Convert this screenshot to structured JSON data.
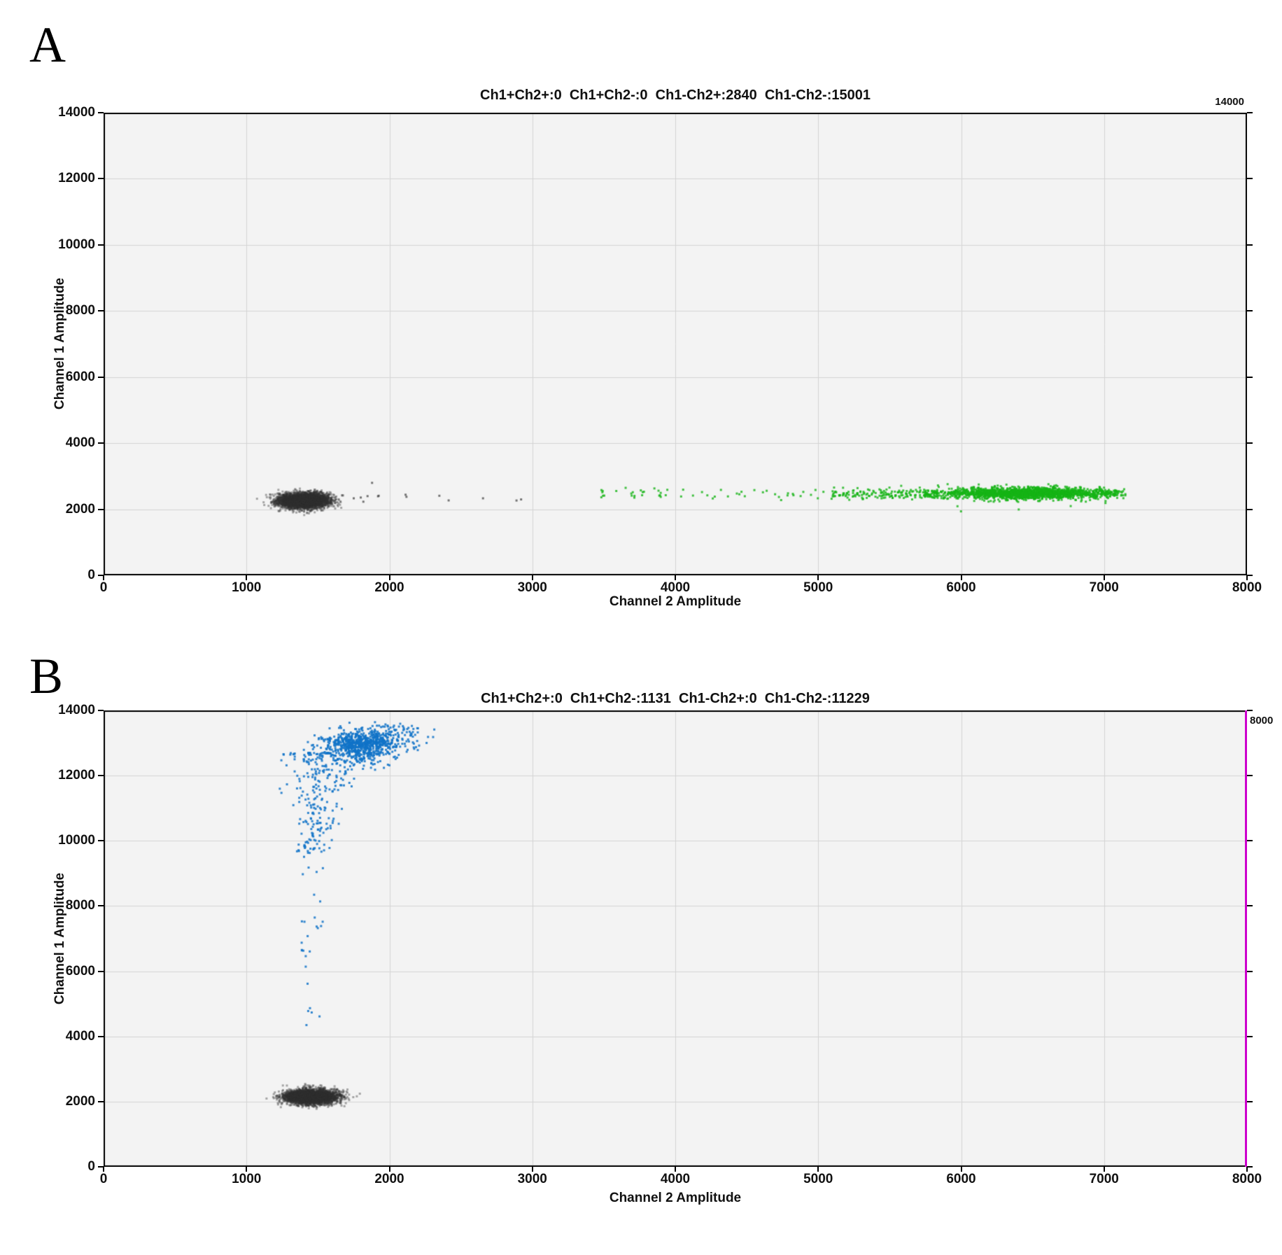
{
  "figure": {
    "background": "#ffffff",
    "description_texts": {
      "panel_a_letter": "A",
      "panel_b_letter": "B"
    }
  },
  "chart_data": {
    "type": "scatter",
    "subtype": "ddPCR 2D droplet amplitude plots",
    "grid": true,
    "legend": "none",
    "panels": [
      {
        "letter": "A",
        "title": "Ch1+Ch2+:0  Ch1+Ch2-:0  Ch1-Ch2+:2840  Ch1-Ch2-:15001",
        "corner_label": "14000",
        "xlabel": "Channel 2 Amplitude",
        "ylabel": "Channel 1 Amplitude",
        "xlim": [
          0,
          8000
        ],
        "ylim": [
          0,
          14000
        ],
        "xtick_step": 1000,
        "ytick_step": 2000,
        "plot_bg": "#f3f3f3",
        "grid_color": "#d4d4d4",
        "border_color": "#000000",
        "right_edge_line_color": null,
        "populations": [
          {
            "label": "Ch1+Ch2+",
            "count": 0
          },
          {
            "label": "Ch1+Ch2-",
            "count": 0
          },
          {
            "label": "Ch1-Ch2+",
            "count": 2840
          },
          {
            "label": "Ch1-Ch2-",
            "count": 15001
          }
        ],
        "clusters": [
          {
            "name": "double-negative-droplets",
            "type": "gauss",
            "n": 3600,
            "cx": 1400,
            "cy": 2260,
            "sx": 88,
            "sy": 112,
            "color": "#303030",
            "alpha": 0.4,
            "size": 3
          },
          {
            "name": "stray-negative-droplets",
            "type": "box",
            "n": 13,
            "x0": 1640,
            "x1": 2950,
            "y0": 2140,
            "y1": 2450,
            "color": "#4a4a4a",
            "alpha": 0.75,
            "size": 3
          },
          {
            "name": "stray-negative-high",
            "type": "box",
            "n": 1,
            "x0": 1860,
            "x1": 1900,
            "y0": 2760,
            "y1": 2800,
            "color": "#4a4a4a",
            "alpha": 0.75,
            "size": 3
          },
          {
            "name": "ch2-positive-rain-sparse",
            "type": "rain",
            "n": 55,
            "x0": 3480,
            "x1": 5100,
            "cy": 2480,
            "sy": 80,
            "color": "#15b415",
            "alpha": 0.8,
            "size": 3
          },
          {
            "name": "ch2-positive-rain-mid",
            "type": "rain",
            "n": 170,
            "x0": 5100,
            "x1": 5850,
            "cy": 2470,
            "sy": 82,
            "color": "#15b415",
            "alpha": 0.8,
            "size": 3
          },
          {
            "name": "ch2-positive-cluster",
            "type": "gauss",
            "n": 1700,
            "cx": 6470,
            "cy": 2480,
            "sx": 310,
            "sy": 88,
            "clipx": [
              5720,
              7150
            ],
            "color": "#15b415",
            "alpha": 0.8,
            "size": 3
          },
          {
            "name": "ch2-positive-low-outliers",
            "type": "box",
            "n": 4,
            "x0": 5900,
            "x1": 6800,
            "y0": 1930,
            "y1": 2120,
            "color": "#15b415",
            "alpha": 0.8,
            "size": 3
          }
        ]
      },
      {
        "letter": "B",
        "title": "Ch1+Ch2+:0  Ch1+Ch2-:1131  Ch1-Ch2+:0  Ch1-Ch2-:11229",
        "corner_label": "8000",
        "xlabel": "Channel 2 Amplitude",
        "ylabel": "Channel 1 Amplitude",
        "xlim": [
          0,
          8000
        ],
        "ylim": [
          0,
          14000
        ],
        "xtick_step": 1000,
        "ytick_step": 2000,
        "plot_bg": "#f3f3f3",
        "grid_color": "#d4d4d4",
        "border_color": "#000000",
        "right_edge_line_color": "#cc00cc",
        "populations": [
          {
            "label": "Ch1+Ch2+",
            "count": 0
          },
          {
            "label": "Ch1+Ch2-",
            "count": 1131
          },
          {
            "label": "Ch1-Ch2+",
            "count": 0
          },
          {
            "label": "Ch1-Ch2-",
            "count": 11229
          }
        ],
        "clusters": [
          {
            "name": "double-negative-droplets",
            "type": "gauss",
            "n": 3400,
            "cx": 1450,
            "cy": 2150,
            "sx": 88,
            "sy": 110,
            "color": "#303030",
            "alpha": 0.4,
            "size": 3
          },
          {
            "name": "ch1-positive-core",
            "type": "gauss",
            "n": 340,
            "cx": 1800,
            "cy": 13000,
            "sx": 145,
            "sy": 145,
            "clipy": [
              0,
              13650
            ],
            "color": "#1173c8",
            "alpha": 0.85,
            "size": 3
          },
          {
            "name": "ch1-positive-spread",
            "type": "gauss",
            "n": 380,
            "cx": 1810,
            "cy": 12880,
            "sx": 118,
            "sy": 270,
            "clipy": [
              0,
              13650
            ],
            "color": "#1173c8",
            "alpha": 0.85,
            "size": 3
          },
          {
            "name": "ch1-positive-upper-right",
            "type": "gauss",
            "n": 80,
            "cx": 2030,
            "cy": 13320,
            "sx": 115,
            "sy": 115,
            "clipy": [
              0,
              13650
            ],
            "color": "#1173c8",
            "alpha": 0.85,
            "size": 3
          },
          {
            "name": "ch1-rain-funnel",
            "type": "funnel",
            "n": 270,
            "y_top": 12700,
            "y_bot": 9600,
            "cx_top": 1565,
            "cx_bot": 1445,
            "sx_top": 150,
            "sx_bot": 55,
            "bias": 1.7,
            "color": "#1173c8",
            "alpha": 0.85,
            "size": 3
          },
          {
            "name": "ch1-rain-low",
            "type": "box",
            "n": 20,
            "x0": 1380,
            "x1": 1540,
            "y0": 6500,
            "y1": 9600,
            "color": "#1173c8",
            "alpha": 0.85,
            "size": 3
          },
          {
            "name": "ch1-rain-drips",
            "type": "box",
            "n": 8,
            "x0": 1400,
            "x1": 1530,
            "y0": 4300,
            "y1": 6500,
            "color": "#1173c8",
            "alpha": 0.85,
            "size": 3
          }
        ]
      }
    ]
  }
}
